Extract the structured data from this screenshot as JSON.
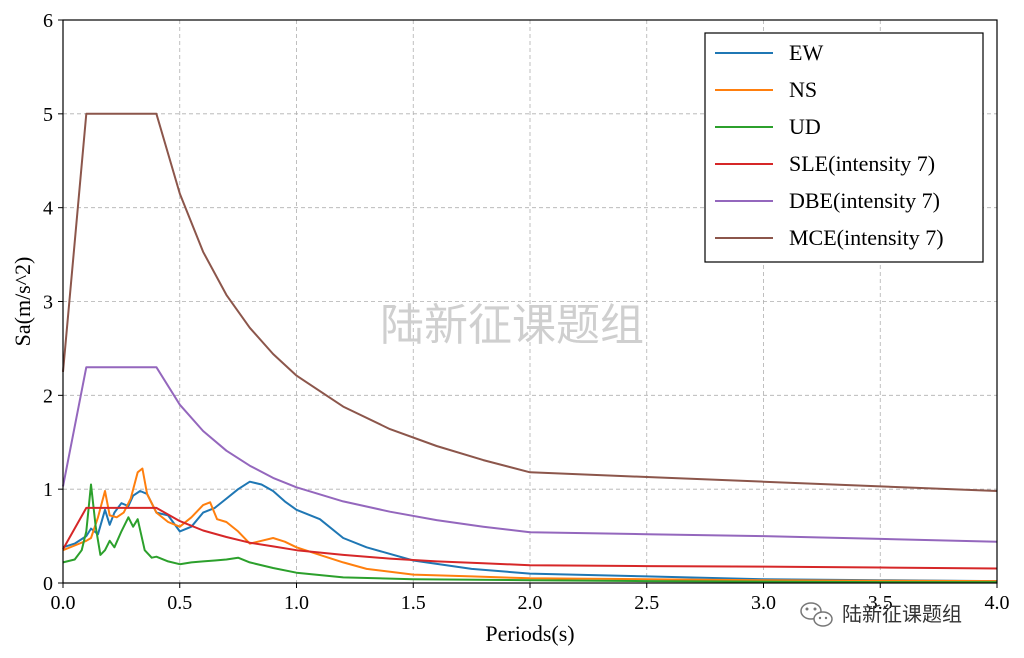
{
  "chart_data": {
    "type": "line",
    "xlabel": "Periods(s)",
    "ylabel": "Sa(m/s^2)",
    "xlim": [
      0,
      4.0
    ],
    "ylim": [
      0,
      6
    ],
    "xticks": [
      "0.0",
      "0.5",
      "1.0",
      "1.5",
      "2.0",
      "2.5",
      "3.0",
      "3.5",
      "4.0"
    ],
    "yticks": [
      "0",
      "1",
      "2",
      "3",
      "4",
      "5",
      "6"
    ],
    "grid": true,
    "legend_position": "top-right",
    "series": [
      {
        "name": "EW",
        "color": "#1f77b4",
        "x": [
          0,
          0.05,
          0.1,
          0.12,
          0.15,
          0.18,
          0.2,
          0.22,
          0.25,
          0.28,
          0.3,
          0.33,
          0.36,
          0.4,
          0.45,
          0.5,
          0.55,
          0.6,
          0.65,
          0.7,
          0.75,
          0.8,
          0.85,
          0.9,
          0.95,
          1.0,
          1.1,
          1.2,
          1.3,
          1.5,
          1.75,
          2.0,
          2.5,
          3.0,
          3.5,
          4.0
        ],
        "y": [
          0.38,
          0.42,
          0.5,
          0.58,
          0.52,
          0.78,
          0.62,
          0.75,
          0.85,
          0.82,
          0.93,
          0.98,
          0.95,
          0.75,
          0.72,
          0.55,
          0.6,
          0.75,
          0.8,
          0.9,
          1.0,
          1.08,
          1.05,
          0.98,
          0.87,
          0.78,
          0.68,
          0.48,
          0.38,
          0.24,
          0.15,
          0.1,
          0.07,
          0.04,
          0.03,
          0.02
        ]
      },
      {
        "name": "NS",
        "color": "#ff7f0e",
        "x": [
          0,
          0.05,
          0.1,
          0.12,
          0.15,
          0.18,
          0.2,
          0.23,
          0.26,
          0.29,
          0.32,
          0.34,
          0.36,
          0.4,
          0.45,
          0.5,
          0.55,
          0.6,
          0.63,
          0.66,
          0.7,
          0.75,
          0.8,
          0.85,
          0.9,
          0.95,
          1.0,
          1.1,
          1.2,
          1.3,
          1.5,
          1.75,
          2.0,
          2.5,
          3.0,
          3.5,
          4.0
        ],
        "y": [
          0.35,
          0.4,
          0.45,
          0.48,
          0.7,
          0.98,
          0.72,
          0.7,
          0.75,
          0.9,
          1.18,
          1.22,
          0.95,
          0.75,
          0.65,
          0.6,
          0.7,
          0.83,
          0.86,
          0.68,
          0.65,
          0.55,
          0.42,
          0.45,
          0.48,
          0.44,
          0.38,
          0.3,
          0.22,
          0.15,
          0.09,
          0.07,
          0.05,
          0.04,
          0.03,
          0.025,
          0.02
        ]
      },
      {
        "name": "UD",
        "color": "#2ca02c",
        "x": [
          0,
          0.05,
          0.08,
          0.1,
          0.12,
          0.14,
          0.16,
          0.18,
          0.2,
          0.22,
          0.25,
          0.28,
          0.3,
          0.32,
          0.35,
          0.38,
          0.4,
          0.45,
          0.5,
          0.55,
          0.6,
          0.65,
          0.7,
          0.75,
          0.8,
          0.9,
          1.0,
          1.2,
          1.5,
          2.0,
          2.5,
          3.0,
          3.5,
          4.0
        ],
        "y": [
          0.22,
          0.25,
          0.35,
          0.55,
          1.05,
          0.6,
          0.3,
          0.35,
          0.45,
          0.38,
          0.55,
          0.7,
          0.6,
          0.68,
          0.35,
          0.27,
          0.28,
          0.23,
          0.2,
          0.22,
          0.23,
          0.24,
          0.25,
          0.27,
          0.22,
          0.16,
          0.11,
          0.06,
          0.04,
          0.03,
          0.02,
          0.015,
          0.01,
          0.01
        ]
      },
      {
        "name": "SLE(intensity 7)",
        "color": "#d62728",
        "x": [
          0,
          0.1,
          0.4,
          0.5,
          0.6,
          0.7,
          0.8,
          0.9,
          1.0,
          1.2,
          1.4,
          1.6,
          1.8,
          2.0,
          2.5,
          3.0,
          3.5,
          4.0
        ],
        "y": [
          0.36,
          0.8,
          0.8,
          0.66,
          0.56,
          0.49,
          0.43,
          0.39,
          0.35,
          0.3,
          0.26,
          0.23,
          0.21,
          0.19,
          0.18,
          0.175,
          0.165,
          0.155
        ]
      },
      {
        "name": "DBE(intensity 7)",
        "color": "#9467bd",
        "x": [
          0,
          0.1,
          0.4,
          0.5,
          0.6,
          0.7,
          0.8,
          0.9,
          1.0,
          1.2,
          1.4,
          1.6,
          1.8,
          2.0,
          2.5,
          3.0,
          3.5,
          4.0
        ],
        "y": [
          1.03,
          2.3,
          2.3,
          1.9,
          1.62,
          1.41,
          1.25,
          1.12,
          1.02,
          0.87,
          0.76,
          0.67,
          0.6,
          0.54,
          0.52,
          0.5,
          0.47,
          0.44
        ]
      },
      {
        "name": "MCE(intensity 7)",
        "color": "#8c564b",
        "x": [
          0,
          0.1,
          0.4,
          0.5,
          0.6,
          0.7,
          0.8,
          0.9,
          1.0,
          1.2,
          1.4,
          1.6,
          1.8,
          2.0,
          2.5,
          3.0,
          3.5,
          4.0
        ],
        "y": [
          2.25,
          5.0,
          5.0,
          4.15,
          3.53,
          3.07,
          2.72,
          2.44,
          2.21,
          1.88,
          1.64,
          1.46,
          1.31,
          1.18,
          1.13,
          1.08,
          1.03,
          0.98
        ]
      }
    ]
  },
  "watermark_text": "陆新征课题组",
  "corner_watermark": {
    "text": "陆新征课题组",
    "icon": "wechat-icon"
  }
}
